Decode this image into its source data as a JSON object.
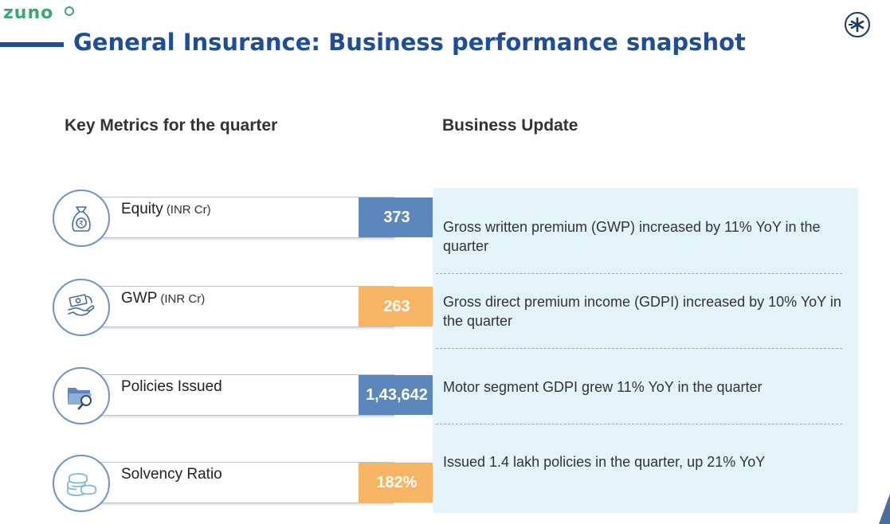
{
  "brand": {
    "logo_text": "zuno"
  },
  "page": {
    "title": "General Insurance: Business performance snapshot"
  },
  "key_metrics": {
    "heading": "Key Metrics for the quarter",
    "items": [
      {
        "label": "Equity",
        "unit": "(INR Cr)",
        "value": "373",
        "value_color": "#5b87bd",
        "icon": "money-bag-icon"
      },
      {
        "label": "GWP",
        "unit": "(INR Cr)",
        "value": "263",
        "value_color": "#f7b462",
        "icon": "cash-in-hand-icon"
      },
      {
        "label": "Policies Issued",
        "unit": "",
        "value": "1,43,642",
        "value_color": "#5b87bd",
        "icon": "folder-search-icon"
      },
      {
        "label": "Solvency Ratio",
        "unit": "",
        "value": "182%",
        "value_color": "#f7b462",
        "icon": "coins-stack-icon"
      }
    ]
  },
  "business_update": {
    "heading": "Business Update",
    "items": [
      "Gross written premium (GWP) increased by 11% YoY in the quarter",
      "Gross direct premium income (GDPI) increased by 10% YoY in the quarter",
      "Motor segment GDPI grew 11% YoY in the quarter",
      "Issued 1.4 lakh policies in the quarter, up 21% YoY"
    ]
  },
  "colors": {
    "title_blue": "#1f4e99",
    "brand_green": "#3aa776",
    "metric_blue": "#5b87bd",
    "metric_orange": "#f7b462",
    "panel_bg": "#e3f3fa"
  }
}
